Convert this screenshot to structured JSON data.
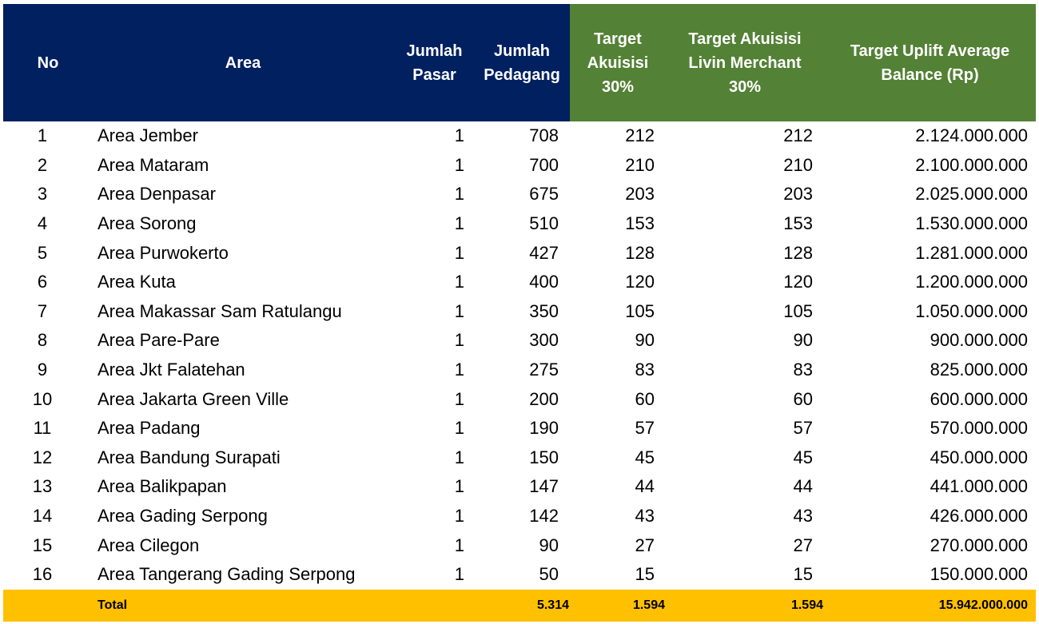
{
  "header": {
    "no": "No",
    "area": "Area",
    "jumlah_pasar": [
      "Jumlah",
      "Pasar"
    ],
    "jumlah_pedagang": [
      "Jumlah",
      "Pedagang"
    ],
    "target_akuisisi": [
      "Target",
      "Akuisisi",
      "30%"
    ],
    "target_livin": [
      "Target Akuisisi",
      "Livin Merchant",
      "30%"
    ],
    "target_uplift": [
      "Target Uplift Average",
      "Balance (Rp)"
    ]
  },
  "rows": [
    {
      "no": "1",
      "area": "Area Jember",
      "pasar": "1",
      "pedagang": "708",
      "akuisisi": "212",
      "livin": "212",
      "uplift": "2.124.000.000"
    },
    {
      "no": "2",
      "area": "Area Mataram",
      "pasar": "1",
      "pedagang": "700",
      "akuisisi": "210",
      "livin": "210",
      "uplift": "2.100.000.000"
    },
    {
      "no": "3",
      "area": "Area Denpasar",
      "pasar": "1",
      "pedagang": "675",
      "akuisisi": "203",
      "livin": "203",
      "uplift": "2.025.000.000"
    },
    {
      "no": "4",
      "area": "Area Sorong",
      "pasar": "1",
      "pedagang": "510",
      "akuisisi": "153",
      "livin": "153",
      "uplift": "1.530.000.000"
    },
    {
      "no": "5",
      "area": "Area Purwokerto",
      "pasar": "1",
      "pedagang": "427",
      "akuisisi": "128",
      "livin": "128",
      "uplift": "1.281.000.000"
    },
    {
      "no": "6",
      "area": "Area Kuta",
      "pasar": "1",
      "pedagang": "400",
      "akuisisi": "120",
      "livin": "120",
      "uplift": "1.200.000.000"
    },
    {
      "no": "7",
      "area": "Area Makassar Sam Ratulangu",
      "pasar": "1",
      "pedagang": "350",
      "akuisisi": "105",
      "livin": "105",
      "uplift": "1.050.000.000"
    },
    {
      "no": "8",
      "area": "Area Pare-Pare",
      "pasar": "1",
      "pedagang": "300",
      "akuisisi": "90",
      "livin": "90",
      "uplift": "900.000.000"
    },
    {
      "no": "9",
      "area": "Area Jkt Falatehan",
      "pasar": "1",
      "pedagang": "275",
      "akuisisi": "83",
      "livin": "83",
      "uplift": "825.000.000"
    },
    {
      "no": "10",
      "area": "Area Jakarta Green Ville",
      "pasar": "1",
      "pedagang": "200",
      "akuisisi": "60",
      "livin": "60",
      "uplift": "600.000.000"
    },
    {
      "no": "11",
      "area": "Area Padang",
      "pasar": "1",
      "pedagang": "190",
      "akuisisi": "57",
      "livin": "57",
      "uplift": "570.000.000"
    },
    {
      "no": "12",
      "area": "Area Bandung Surapati",
      "pasar": "1",
      "pedagang": "150",
      "akuisisi": "45",
      "livin": "45",
      "uplift": "450.000.000"
    },
    {
      "no": "13",
      "area": "Area Balikpapan",
      "pasar": "1",
      "pedagang": "147",
      "akuisisi": "44",
      "livin": "44",
      "uplift": "441.000.000"
    },
    {
      "no": "14",
      "area": "Area Gading Serpong",
      "pasar": "1",
      "pedagang": "142",
      "akuisisi": "43",
      "livin": "43",
      "uplift": "426.000.000"
    },
    {
      "no": "15",
      "area": "Area Cilegon",
      "pasar": "1",
      "pedagang": "90",
      "akuisisi": "27",
      "livin": "27",
      "uplift": "270.000.000"
    },
    {
      "no": "16",
      "area": "Area Tangerang Gading Serpong",
      "pasar": "1",
      "pedagang": "50",
      "akuisisi": "15",
      "livin": "15",
      "uplift": "150.000.000"
    }
  ],
  "total": {
    "label": "Total",
    "pedagang": "5.314",
    "akuisisi": "1.594",
    "livin": "1.594",
    "uplift": "15.942.000.000"
  },
  "colors": {
    "header_navy": "#002060",
    "header_green": "#538135",
    "total_row": "#ffc000"
  }
}
